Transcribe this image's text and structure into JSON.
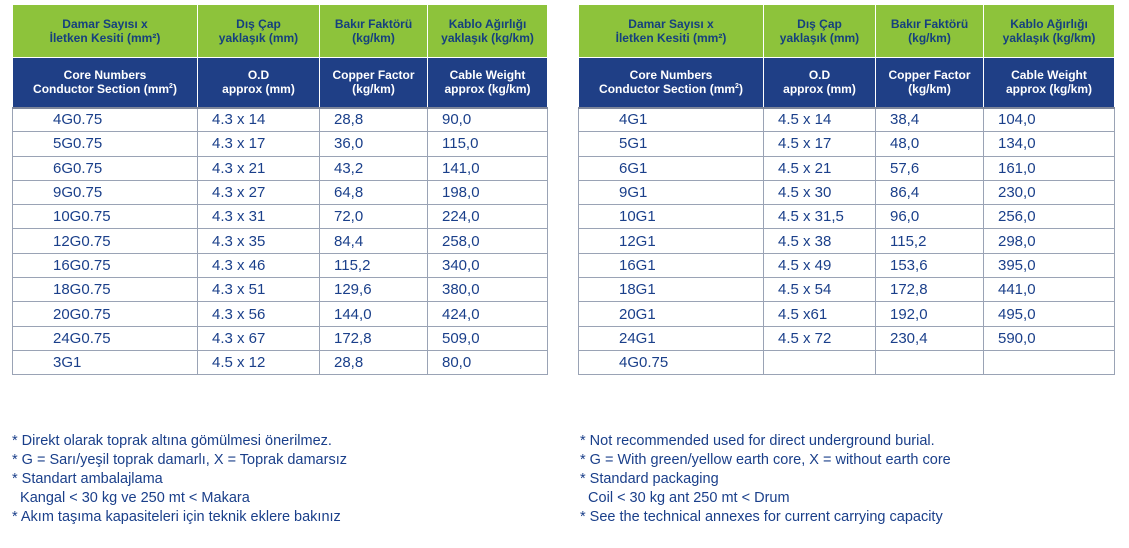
{
  "header": {
    "tr": [
      "Damar Sayısı x|İletken Kesiti (mm²)",
      "Dış Çap|yaklaşık (mm)",
      "Bakır Faktörü|(kg/km)",
      "Kablo Ağırlığı|yaklaşık (kg/km)"
    ],
    "en": {
      "col0_line1": "Core Numbers",
      "col0_line2": "Conductor Section (mm",
      "col0_sup": "2",
      "col0_close": ")",
      "col1_line1": "O.D",
      "col1_line2": "approx (mm)",
      "col2_line1": "Copper Factor",
      "col2_line2": "(kg/km)",
      "col3_line1": "Cable Weight",
      "col3_line2": "approx (kg/km)"
    }
  },
  "tables": {
    "left": [
      [
        "4G0.75",
        "4.3 x 14",
        "28,8",
        "90,0"
      ],
      [
        "5G0.75",
        "4.3 x 17",
        "36,0",
        "115,0"
      ],
      [
        "6G0.75",
        "4.3 x 21",
        "43,2",
        "141,0"
      ],
      [
        "9G0.75",
        "4.3 x 27",
        "64,8",
        "198,0"
      ],
      [
        "10G0.75",
        "4.3 x 31",
        "72,0",
        "224,0"
      ],
      [
        "12G0.75",
        "4.3 x 35",
        "84,4",
        "258,0"
      ],
      [
        "16G0.75",
        "4.3 x 46",
        "115,2",
        "340,0"
      ],
      [
        "18G0.75",
        "4.3 x 51",
        "129,6",
        "380,0"
      ],
      [
        "20G0.75",
        "4.3 x 56",
        "144,0",
        "424,0"
      ],
      [
        "24G0.75",
        "4.3 x 67",
        "172,8",
        "509,0"
      ],
      [
        "3G1",
        "4.5 x 12",
        "28,8",
        "80,0"
      ]
    ],
    "right": [
      [
        "4G1",
        "4.5 x 14",
        "38,4",
        "104,0"
      ],
      [
        "5G1",
        "4.5 x 17",
        "48,0",
        "134,0"
      ],
      [
        "6G1",
        "4.5 x 21",
        "57,6",
        "161,0"
      ],
      [
        "9G1",
        "4.5 x 30",
        "86,4",
        "230,0"
      ],
      [
        "10G1",
        "4.5 x 31,5",
        "96,0",
        "256,0"
      ],
      [
        "12G1",
        "4.5 x 38",
        "115,2",
        "298,0"
      ],
      [
        "16G1",
        "4.5 x 49",
        "153,6",
        "395,0"
      ],
      [
        "18G1",
        "4.5 x 54",
        "172,8",
        "441,0"
      ],
      [
        "20G1",
        "4.5 x61",
        "192,0",
        "495,0"
      ],
      [
        "24G1",
        "4.5 x 72",
        "230,4",
        "590,0"
      ],
      [
        "4G0.75",
        "",
        "",
        ""
      ]
    ]
  },
  "notes": {
    "tr": [
      "* Direkt olarak toprak altına gömülmesi önerilmez.",
      "* G = Sarı/yeşil toprak damarlı, X = Toprak damarsız",
      "* Standart ambalajlama",
      "  Kangal < 30 kg ve 250 mt < Makara",
      "* Akım taşıma kapasiteleri için teknik eklere bakınız"
    ],
    "en": [
      "* Not recommended used for direct underground burial.",
      "* G = With green/yellow earth core, X = without earth core",
      "* Standard packaging",
      "  Coil < 30 kg ant 250 mt < Drum",
      "* See the technical annexes for current carrying capacity"
    ]
  }
}
